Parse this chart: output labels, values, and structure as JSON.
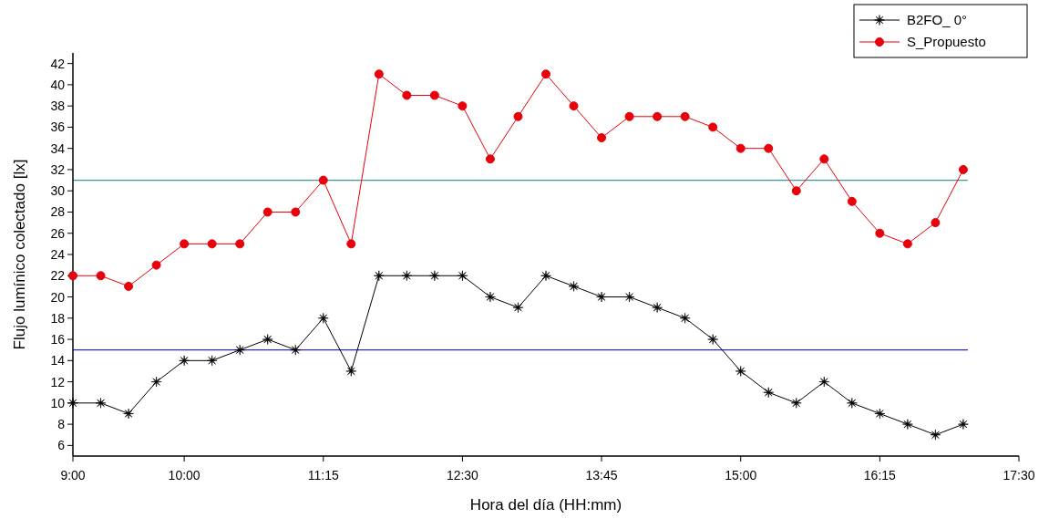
{
  "chart_data": {
    "type": "line",
    "xlabel": "Hora del día (HH:mm)",
    "ylabel": "Flujo lumínico colectado [lx]",
    "x": [
      9,
      9.25,
      9.5,
      9.75,
      10,
      10.25,
      10.5,
      10.75,
      11,
      11.25,
      11.5,
      11.75,
      12,
      12.25,
      12.5,
      12.75,
      13,
      13.25,
      13.5,
      13.75,
      14,
      14.25,
      14.5,
      14.75,
      15,
      15.25,
      15.5,
      15.75,
      16,
      16.25,
      16.5,
      16.75,
      17
    ],
    "series": [
      {
        "name": "B2FO_ 0°",
        "color": "#000000",
        "marker": "star",
        "values": [
          10,
          10,
          9,
          12,
          14,
          14,
          15,
          16,
          15,
          18,
          13,
          22,
          22,
          22,
          22,
          20,
          19,
          22,
          21,
          20,
          20,
          19,
          18,
          16,
          13,
          11,
          10,
          12,
          10,
          9,
          8,
          7,
          8
        ]
      },
      {
        "name": "S_Propuesto",
        "color": "#e8000b",
        "marker": "circle",
        "values": [
          22,
          22,
          21,
          23,
          25,
          25,
          25,
          28,
          28,
          31,
          25,
          41,
          39,
          39,
          38,
          33,
          37,
          41,
          38,
          35,
          37,
          37,
          37,
          36,
          34,
          34,
          30,
          33,
          29,
          26,
          25,
          27,
          32
        ]
      }
    ],
    "xlim": [
      9,
      17.5
    ],
    "xticks": [
      {
        "value": 9,
        "label": "9:00"
      },
      {
        "value": 10,
        "label": "10:00"
      },
      {
        "value": 11.25,
        "label": "11:15"
      },
      {
        "value": 12.5,
        "label": "12:30"
      },
      {
        "value": 13.75,
        "label": "13:45"
      },
      {
        "value": 15,
        "label": "15:00"
      },
      {
        "value": 16.25,
        "label": "16:15"
      },
      {
        "value": 17.5,
        "label": "17:30"
      }
    ],
    "ylim": [
      5,
      43
    ],
    "yticks": [
      6,
      8,
      10,
      12,
      14,
      16,
      18,
      20,
      22,
      24,
      26,
      28,
      30,
      32,
      34,
      36,
      38,
      40,
      42
    ],
    "ref_lines": [
      {
        "axis": "y",
        "value": 31,
        "color": "#3a9a9a"
      },
      {
        "axis": "y",
        "value": 15,
        "color": "#2b2bd6"
      }
    ],
    "legend": "top right",
    "grid": false,
    "line_style": "solid"
  }
}
